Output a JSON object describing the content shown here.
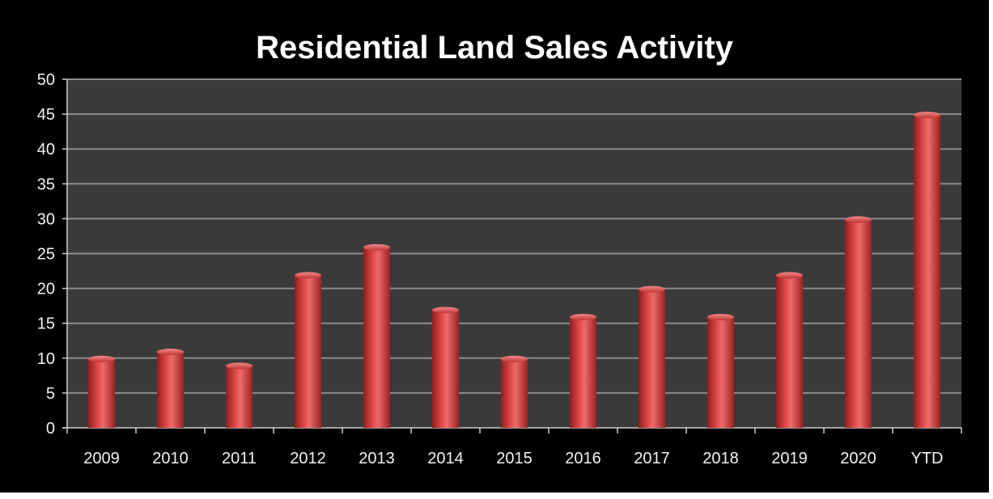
{
  "chart_data": {
    "type": "bar",
    "title": "Residential Land Sales Activity",
    "xlabel": "",
    "ylabel": "",
    "categories": [
      "2009",
      "2010",
      "2011",
      "2012",
      "2013",
      "2014",
      "2015",
      "2016",
      "2017",
      "2018",
      "2019",
      "2020",
      "YTD"
    ],
    "values": [
      10,
      11,
      9,
      22,
      26,
      17,
      10,
      16,
      20,
      16,
      22,
      30,
      45
    ],
    "ylim": [
      0,
      50
    ],
    "yticks": [
      "0",
      "5",
      "10",
      "15",
      "20",
      "25",
      "30",
      "35",
      "40",
      "45",
      "50"
    ],
    "grid": true,
    "legend": "none",
    "colors": {
      "background": "#000000",
      "plot_area": "#3a3a3a",
      "gridline": "#8c8c8c",
      "bar": "#d43c3c",
      "text": "#f2f2f2"
    }
  }
}
